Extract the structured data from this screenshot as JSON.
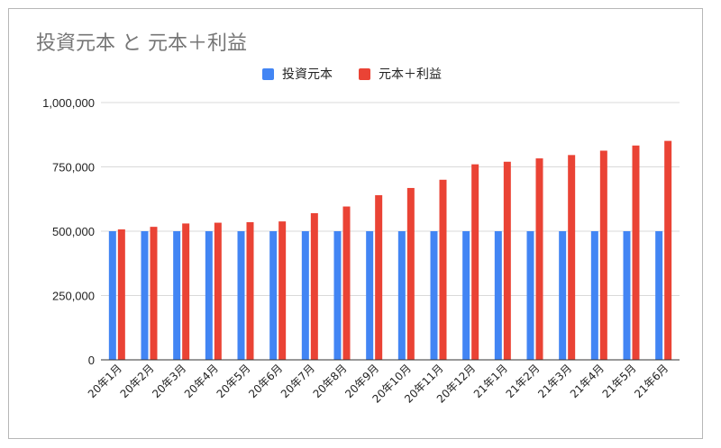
{
  "chart_data": {
    "type": "bar",
    "title": "投資元本 と 元本＋利益",
    "categories": [
      "20年1月",
      "20年2月",
      "20年3月",
      "20年4月",
      "20年5月",
      "20年6月",
      "20年7月",
      "20年8月",
      "20年9月",
      "20年10月",
      "20年11月",
      "20年12月",
      "21年1月",
      "21年2月",
      "21年3月",
      "21年4月",
      "21年5月",
      "21年6月"
    ],
    "series": [
      {
        "name": "投資元本",
        "color": "#4285f4",
        "values": [
          500000,
          500000,
          500000,
          500000,
          500000,
          500000,
          500000,
          500000,
          500000,
          500000,
          500000,
          500000,
          500000,
          500000,
          500000,
          500000,
          500000,
          500000
        ]
      },
      {
        "name": "元本＋利益",
        "color": "#ea4335",
        "values": [
          507000,
          517000,
          530000,
          533000,
          535000,
          538000,
          570000,
          596000,
          640000,
          668000,
          700000,
          760000,
          770000,
          783000,
          796000,
          813000,
          833000,
          851000
        ]
      }
    ],
    "ylim": [
      0,
      1000000
    ],
    "yticks": [
      0,
      250000,
      500000,
      750000,
      1000000
    ],
    "ytick_labels": [
      "0",
      "250,000",
      "500,000",
      "750,000",
      "1,000,000"
    ],
    "xlabel": "",
    "ylabel": "",
    "grid": true,
    "legend_position": "top"
  }
}
